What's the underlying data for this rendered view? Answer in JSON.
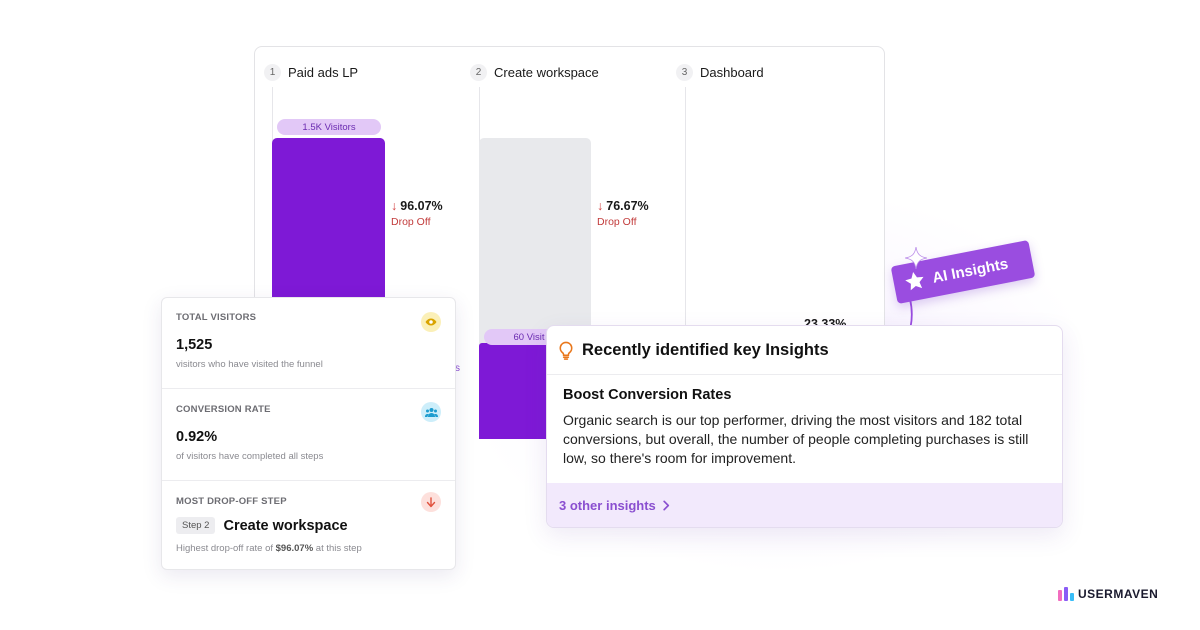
{
  "funnel": {
    "steps": [
      {
        "num": "1",
        "name": "Paid ads LP"
      },
      {
        "num": "2",
        "name": "Create workspace"
      },
      {
        "num": "3",
        "name": "Dashboard"
      }
    ],
    "step1": {
      "visitors": "1.5K Visitors",
      "drop_pct": "96.07%",
      "drop_label": "Drop Off",
      "arrow": "↓"
    },
    "step2": {
      "visitors": "60 Visit",
      "drop_pct": "76.67%",
      "drop_label": "Drop Off",
      "arrow": "↓",
      "partial_text": "s"
    },
    "step3": {
      "conv_pct": "23.33%"
    }
  },
  "stats": {
    "total": {
      "label": "TOTAL VISITORS",
      "value": "1,525",
      "sub": "visitors who have visited the funnel",
      "icon": "eye-icon"
    },
    "conversion": {
      "label": "CONVERSION RATE",
      "value": "0.92%",
      "sub": "of visitors have completed all steps",
      "icon": "users-icon"
    },
    "dropoff": {
      "label": "MOST DROP-OFF STEP",
      "chip": "Step 2",
      "title": "Create workspace",
      "sub_prefix": "Highest drop-off rate of ",
      "sub_strong": "$96.07%",
      "sub_suffix": " at this step",
      "icon": "arrow-down-icon"
    }
  },
  "ai_badge": {
    "label": "AI Insights",
    "icon": "star-icon"
  },
  "insights": {
    "title": "Recently identified key Insights",
    "icon": "lightbulb-icon",
    "heading": "Boost Conversion Rates",
    "body": "Organic search is our top performer, driving the most visitors and 182 total conversions, but overall, the number of people completing purchases is still low, so there's room for improvement.",
    "footer": "3 other insights",
    "footer_icon": "chevron-right-icon"
  },
  "brand": {
    "name": "USERMAVEN"
  },
  "colors": {
    "primary": "#7e19d6",
    "badge": "#9a4de0",
    "drop": "#d23f3f",
    "pill": "#e2c8f7"
  }
}
